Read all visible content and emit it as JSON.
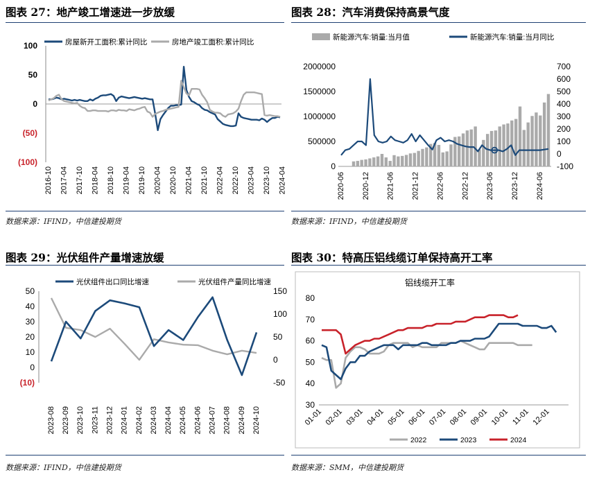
{
  "colors": {
    "navy": "#1c4a7a",
    "gray": "#aaaaaa",
    "red": "#c8222a",
    "rule": "#1d3f72"
  },
  "panels": [
    {
      "title": "图表 27：地产竣工增速进一步放缓",
      "source": "数据来源：IFIND，中信建投期货"
    },
    {
      "title": "图表 28：汽车消费保持高景气度",
      "source": "数据来源：IFIND，中信建投期货"
    },
    {
      "title": "图表 29：光伏组件产量增速放缓",
      "source": "数据来源：IFIND，中信建投期货"
    },
    {
      "title": "图表 30：特高压铝线缆订单保持高开工率",
      "source": "数据来源：SMM，中信建投期货"
    }
  ],
  "chart_data": [
    {
      "type": "line",
      "title": "",
      "ylim": [
        -100,
        100
      ],
      "yticks": [
        "100",
        "50",
        "0",
        "(50)",
        "(100)"
      ],
      "ytick_values": [
        100,
        50,
        0,
        -50,
        -100
      ],
      "xticks": [
        "2016-10",
        "2017-04",
        "2017-10",
        "2018-04",
        "2018-10",
        "2019-04",
        "2019-10",
        "2020-04",
        "2020-10",
        "2021-04",
        "2021-10",
        "2022-04",
        "2022-10",
        "2023-04",
        "2023-10",
        "2024-04"
      ],
      "series": [
        {
          "name": "房屋新开工面积:累计同比",
          "color": "navy",
          "values": [
            8,
            8,
            9,
            11,
            10,
            8,
            9,
            8,
            7,
            6,
            7,
            6,
            7,
            6,
            5,
            5,
            8,
            6,
            9,
            11,
            14,
            15,
            15,
            16,
            17,
            14,
            5,
            11,
            13,
            12,
            11,
            10,
            11,
            12,
            11,
            10,
            9,
            10,
            9,
            8,
            8,
            -17,
            -45,
            -26,
            -19,
            -13,
            -7,
            -3,
            -3,
            -2,
            -2,
            -1,
            64,
            24,
            12,
            5,
            3,
            0,
            -2,
            -7,
            -10,
            -11,
            -14,
            -16,
            -18,
            -26,
            -30,
            -34,
            -36,
            -37,
            -38,
            -38,
            -37,
            -16,
            -22,
            -24,
            -25,
            -26,
            -27,
            -27,
            -27,
            -28,
            -25,
            -27,
            -31,
            -27,
            -24,
            -24,
            -22,
            -23
          ]
        },
        {
          "name": "房地产竣工面积:累计同比",
          "color": "gray",
          "values": [
            6,
            8,
            10,
            14,
            16,
            8,
            5,
            4,
            3,
            2,
            1,
            2,
            -3,
            -6,
            -7,
            -12,
            -12,
            -11,
            -11,
            -12,
            -12,
            -12,
            -12,
            -13,
            -11,
            -11,
            -12,
            -10,
            -11,
            -11,
            -12,
            -9,
            -10,
            -11,
            -9,
            -8,
            -6,
            -5,
            -13,
            -15,
            -22,
            -17,
            -15,
            -13,
            -12,
            -10,
            -9,
            -8,
            -7,
            -6,
            -5,
            40,
            29,
            18,
            15,
            26,
            26,
            26,
            25,
            16,
            10,
            3,
            -10,
            -13,
            -15,
            -15,
            -16,
            -20,
            -22,
            -18,
            -17,
            -16,
            -13,
            -8,
            5,
            16,
            20,
            20,
            20,
            20,
            19,
            18,
            17,
            -19,
            -20,
            -19,
            -20,
            -21,
            -21,
            -22
          ]
        }
      ]
    },
    {
      "type": "bar+line",
      "title": "",
      "ylim_left": [
        0,
        2000000
      ],
      "yticks_left": [
        "2000000",
        "1500000",
        "1000000",
        "500000",
        "0"
      ],
      "ylim_right": [
        -100,
        700
      ],
      "yticks_right": [
        "700",
        "600",
        "500",
        "400",
        "300",
        "200",
        "100",
        "0",
        "-100"
      ],
      "xticks": [
        "2020-06",
        "2020-12",
        "2021-06",
        "2021-12",
        "2022-06",
        "2022-12",
        "2023-06",
        "2023-12",
        "2024-06"
      ],
      "series": [
        {
          "name": "新能源汽车:销量:当月值",
          "type": "bar",
          "axis": "left",
          "color": "gray",
          "values": [
            100000,
            110000,
            130000,
            140000,
            160000,
            180000,
            200000,
            250000,
            180000,
            110000,
            225000,
            200000,
            210000,
            230000,
            260000,
            270000,
            310000,
            350000,
            380000,
            450000,
            470000,
            430000,
            280000,
            300000,
            440000,
            590000,
            600000,
            660000,
            720000,
            740000,
            800000,
            340000,
            530000,
            650000,
            710000,
            720000,
            800000,
            840000,
            860000,
            920000,
            950000,
            1200000,
            730000,
            880000,
            1010000,
            1080000,
            1020000,
            1280000,
            1450000
          ]
        },
        {
          "name": "新能源汽车:销量:当月同比",
          "type": "line",
          "axis": "right",
          "color": "navy",
          "values": [
            -10,
            30,
            40,
            70,
            100,
            100,
            70,
            600,
            150,
            100,
            90,
            100,
            140,
            110,
            100,
            90,
            110,
            160,
            100,
            150,
            110,
            70,
            35,
            110,
            130,
            100,
            110,
            100,
            80,
            70,
            60,
            55,
            55,
            20,
            70,
            40,
            30,
            30,
            30,
            20,
            40,
            70,
            -10,
            30,
            30,
            30,
            30,
            30,
            30,
            35,
            40
          ]
        }
      ]
    },
    {
      "type": "line",
      "title": "",
      "ylim_left": [
        -10,
        50
      ],
      "yticks_left": [
        "50",
        "40",
        "30",
        "20",
        "10",
        "0",
        "(10)"
      ],
      "ylim_right": [
        -50,
        150
      ],
      "yticks_right": [
        "150",
        "100",
        "50",
        "0",
        "-50"
      ],
      "xticks": [
        "2023-08",
        "2023-09",
        "2023-10",
        "2023-11",
        "2023-12",
        "2024-01",
        "2024-02",
        "2024-03",
        "2024-04",
        "2024-05",
        "2024-06",
        "2024-07",
        "2024-08",
        "2024-09",
        "2024-10"
      ],
      "series": [
        {
          "name": "光伏组件出口同比增速",
          "axis": "left",
          "color": "navy",
          "values": [
            4,
            30,
            19,
            37,
            44,
            42,
            39.5,
            14,
            24.5,
            18,
            33,
            46,
            18,
            -5,
            23
          ]
        },
        {
          "name": "光伏组件产量同比增速",
          "axis": "right",
          "color": "gray",
          "values": [
            135,
            70,
            65,
            50,
            68,
            35,
            0,
            45,
            38,
            33,
            32,
            20,
            12,
            20,
            15
          ]
        }
      ]
    },
    {
      "type": "line",
      "title": "铝线缆开工率",
      "ylim": [
        30,
        80
      ],
      "yticks": [
        "80",
        "70",
        "60",
        "50",
        "40",
        "30"
      ],
      "xticks": [
        "01-01",
        "02-01",
        "03-01",
        "04-01",
        "05-01",
        "06-01",
        "07-01",
        "08-01",
        "09-01",
        "10-01",
        "11-01",
        "12-01"
      ],
      "series": [
        {
          "name": "2022",
          "color": "gray",
          "values": [
            52,
            51,
            51,
            38,
            40,
            52,
            55,
            57,
            57,
            56,
            54,
            54,
            54,
            55,
            58,
            59,
            59,
            59,
            59,
            57,
            58,
            57,
            57,
            57,
            57,
            59,
            59,
            59,
            59,
            60,
            59,
            58,
            57,
            56,
            56,
            59,
            59,
            59,
            59,
            59,
            59,
            58,
            58,
            58,
            58
          ]
        },
        {
          "name": "2023",
          "color": "navy",
          "values": [
            58,
            57,
            46,
            44,
            42,
            47,
            50,
            50,
            53,
            53,
            55,
            56,
            57,
            58,
            58,
            58,
            56,
            58,
            58,
            58,
            58,
            59,
            59,
            58,
            58,
            58,
            58,
            59,
            59,
            60,
            60,
            60,
            61,
            61,
            61,
            62,
            65,
            68,
            68,
            68,
            68,
            68,
            67,
            67,
            67,
            67,
            66,
            66,
            67,
            64
          ]
        },
        {
          "name": "2024",
          "color": "red",
          "values": [
            65,
            65,
            65,
            65,
            63,
            54,
            56,
            58,
            59,
            60,
            60,
            61,
            61,
            62,
            63,
            64,
            65,
            65,
            66,
            66,
            66,
            66,
            67,
            67,
            68,
            68,
            68,
            68,
            69,
            69,
            69,
            70,
            71,
            71,
            71,
            72,
            72,
            72,
            72,
            71,
            71,
            72
          ]
        }
      ]
    }
  ]
}
